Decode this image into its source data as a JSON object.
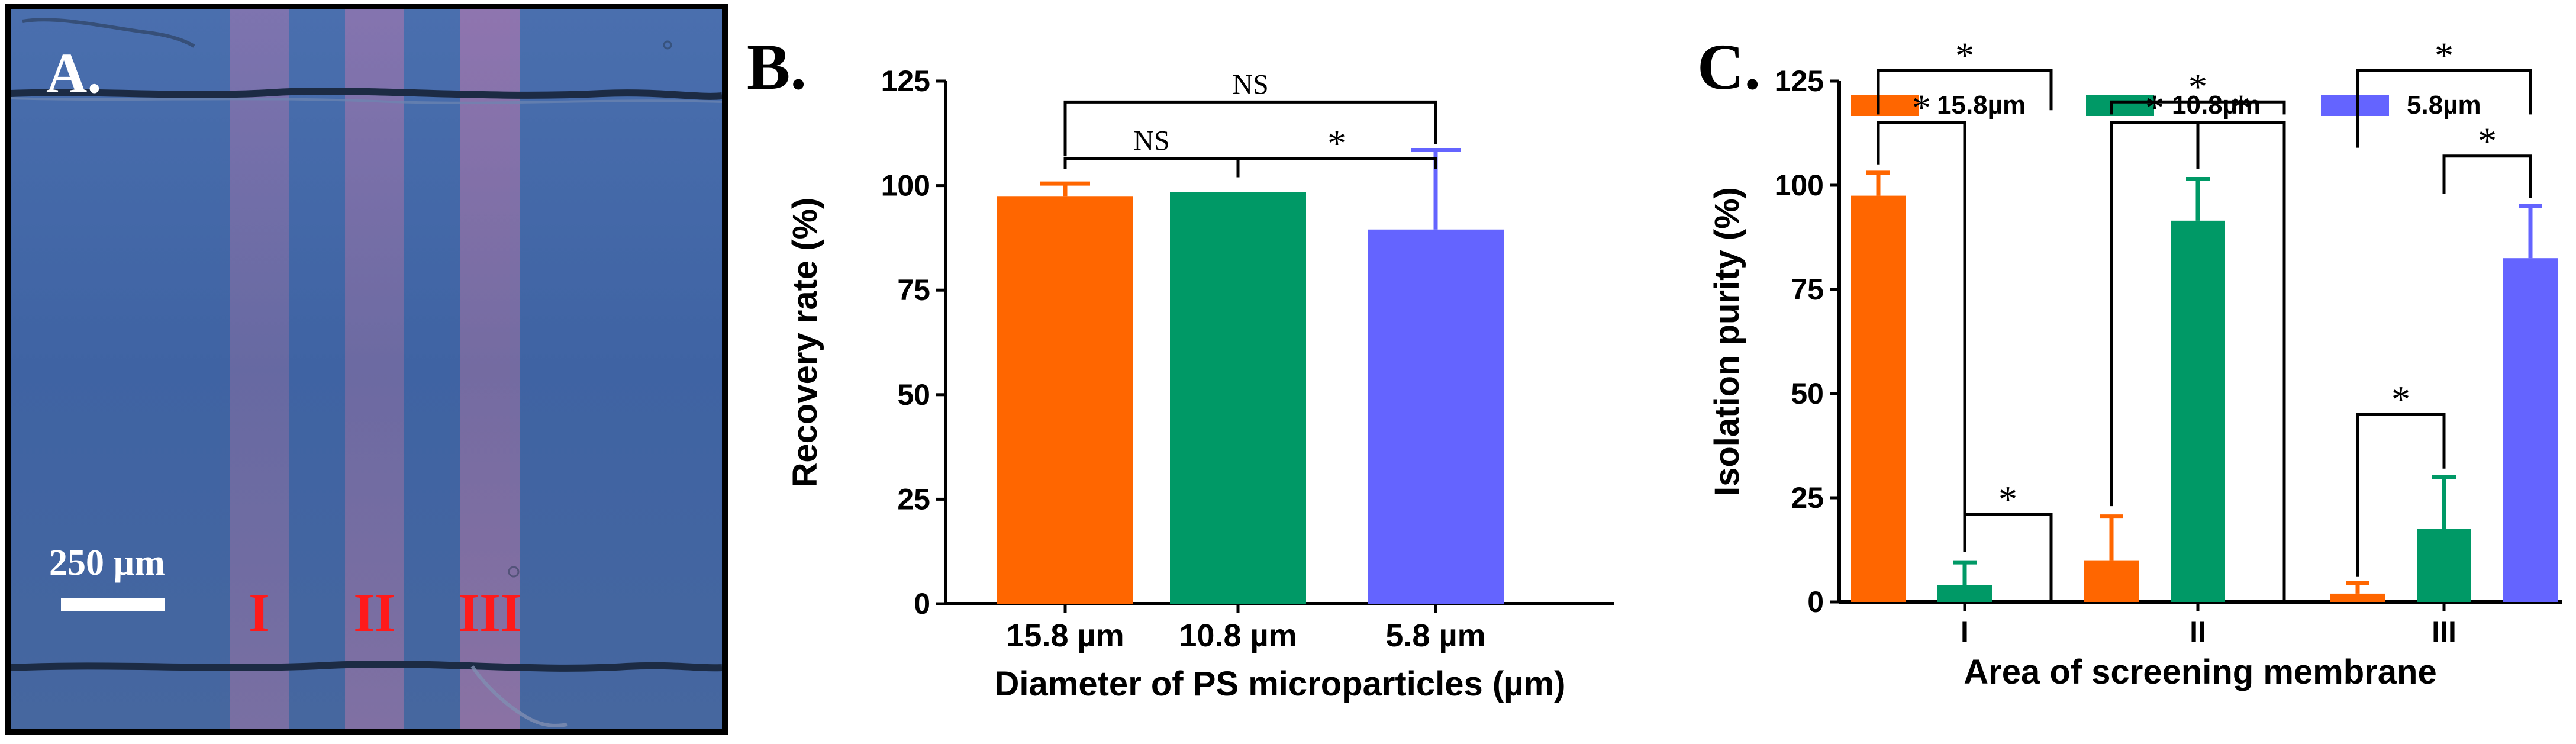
{
  "panel_a": {
    "letter": "A.",
    "scale_bar_label": "250 µm",
    "zones": [
      "I",
      "II",
      "III"
    ]
  },
  "chart_data": [
    {
      "panel_letter": "B.",
      "type": "bar",
      "xlabel": "Diameter of PS microparticles (µm)",
      "ylabel": "Recovery rate (%)",
      "ylim": [
        0,
        125
      ],
      "yticks": [
        0,
        25,
        50,
        75,
        100,
        125
      ],
      "categories": [
        "15.8 µm",
        "10.8 µm",
        "5.8 µm"
      ],
      "values": [
        97.5,
        98.5,
        89.5
      ],
      "errors": [
        3,
        0,
        19
      ],
      "colors": [
        "#ff6600",
        "#009966",
        "#6464ff"
      ],
      "significance": [
        {
          "from": 1,
          "to": 2,
          "label": "NS"
        },
        {
          "from": 2,
          "to": 3,
          "label": "*"
        },
        {
          "from": 1,
          "to": 3,
          "label": "NS"
        }
      ]
    },
    {
      "panel_letter": "C.",
      "type": "bar",
      "xlabel": "Area of screening membrane",
      "ylabel": "Isolation purity (%)",
      "ylim": [
        0,
        125
      ],
      "yticks": [
        0,
        25,
        50,
        75,
        100,
        125
      ],
      "categories": [
        "I",
        "II",
        "III"
      ],
      "legend_position": "top",
      "series": [
        {
          "name": "15.8µm",
          "color": "#ff6600",
          "values": [
            97.5,
            10,
            2
          ],
          "errors": [
            5.5,
            10.5,
            2.5
          ]
        },
        {
          "name": "10.8µm",
          "color": "#009966",
          "values": [
            4,
            91.5,
            17.5
          ],
          "errors": [
            5.5,
            10,
            12.5
          ]
        },
        {
          "name": "5.8µm",
          "color": "#6464ff",
          "values": [
            0,
            0,
            82.5
          ],
          "errors": [
            0,
            0,
            12.5
          ]
        }
      ],
      "significance": [
        {
          "group": 1,
          "from": 1,
          "to": 2,
          "label": "*"
        },
        {
          "group": 1,
          "from": 2,
          "to": 3,
          "label": "*"
        },
        {
          "group": 1,
          "from": 1,
          "to": 3,
          "label": "*"
        },
        {
          "group": 2,
          "from": 1,
          "to": 2,
          "label": "*"
        },
        {
          "group": 2,
          "from": 2,
          "to": 3,
          "label": "*"
        },
        {
          "group": 2,
          "from": 1,
          "to": 3,
          "label": "*"
        },
        {
          "group": 3,
          "from": 1,
          "to": 2,
          "label": "*"
        },
        {
          "group": 3,
          "from": 2,
          "to": 3,
          "label": "*"
        },
        {
          "group": 3,
          "from": 1,
          "to": 3,
          "label": "*"
        }
      ]
    }
  ]
}
